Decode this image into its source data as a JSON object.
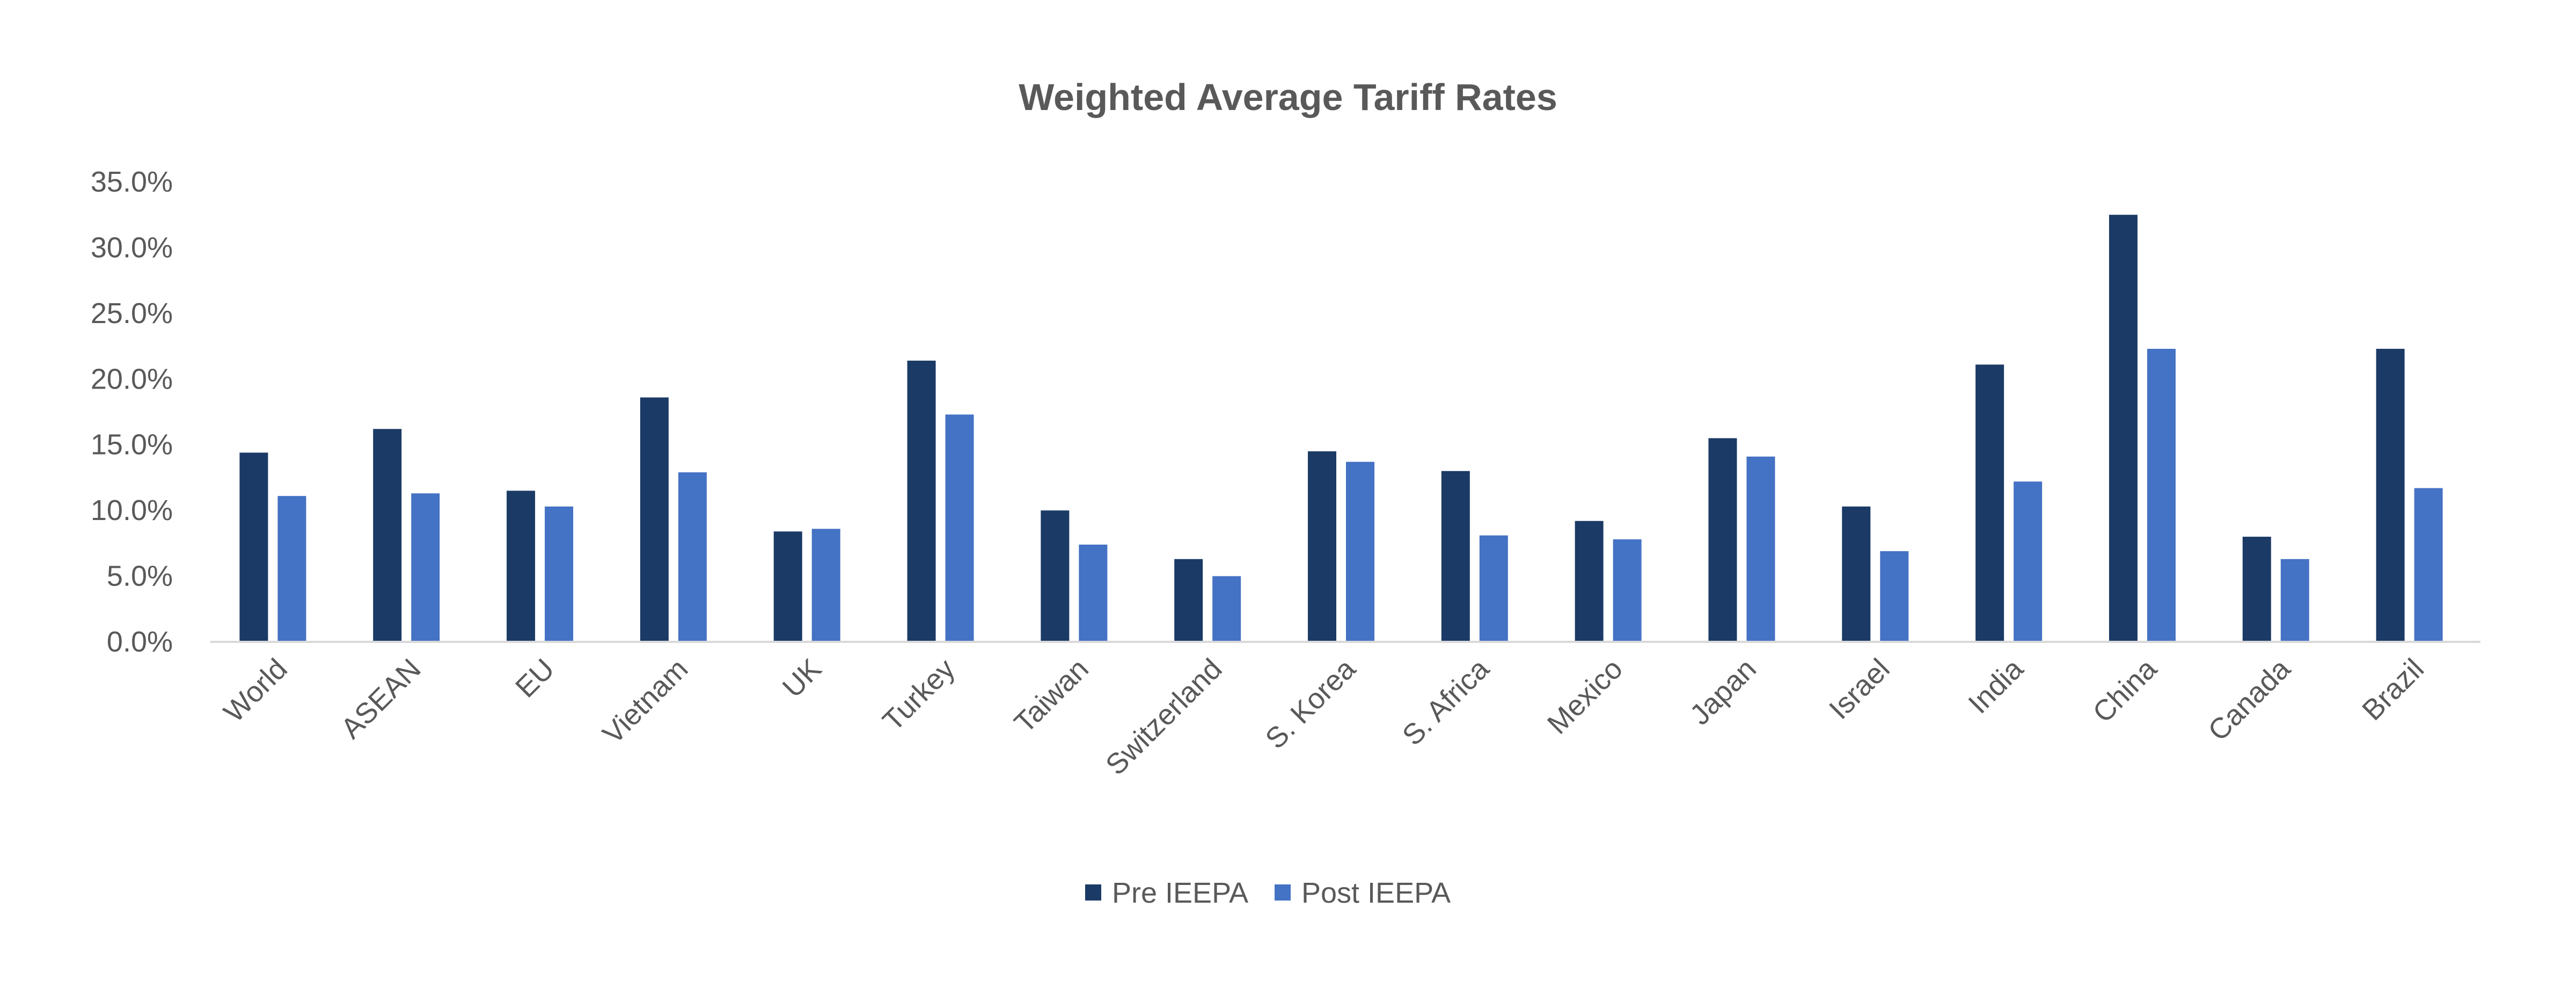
{
  "chart_data": {
    "type": "bar",
    "title": "Weighted Average Tariff Rates",
    "xlabel": "",
    "ylabel": "",
    "ylim": [
      0,
      35
    ],
    "yticks": [
      "0.0%",
      "5.0%",
      "10.0%",
      "15.0%",
      "20.0%",
      "25.0%",
      "30.0%",
      "35.0%"
    ],
    "grid": false,
    "legend_position": "bottom",
    "categories": [
      "World",
      "ASEAN",
      "EU",
      "Vietnam",
      "UK",
      "Turkey",
      "Taiwan",
      "Switzerland",
      "S. Korea",
      "S. Africa",
      "Mexico",
      "Japan",
      "Israel",
      "India",
      "China",
      "Canada",
      "Brazil"
    ],
    "series": [
      {
        "name": "Pre IEEPA",
        "color": "#1B3A66",
        "values": [
          14.4,
          16.2,
          11.5,
          18.6,
          8.4,
          21.4,
          10.0,
          6.3,
          14.5,
          13.0,
          9.2,
          15.5,
          10.3,
          21.1,
          32.5,
          8.0,
          22.3
        ]
      },
      {
        "name": "Post IEEPA",
        "color": "#4472C4",
        "values": [
          11.1,
          11.3,
          10.3,
          12.9,
          8.6,
          17.3,
          7.4,
          5.0,
          13.7,
          8.1,
          7.8,
          14.1,
          6.9,
          12.2,
          22.3,
          6.3,
          11.7
        ]
      }
    ]
  }
}
